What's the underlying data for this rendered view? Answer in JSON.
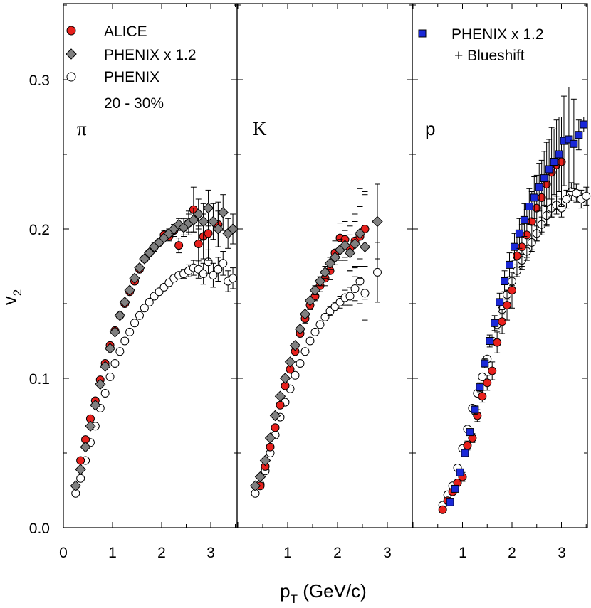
{
  "chart_data": {
    "type": "scatter",
    "ylabel": "v",
    "ylabel_sub": "2",
    "xlabel": "p",
    "xlabel_sub": "T",
    "xlabel_unit": " (GeV/c)",
    "ylim": [
      0.0,
      0.35
    ],
    "yticks": [
      "0.0",
      "0.1",
      "0.2",
      "0.3"
    ],
    "centrality": "20 - 30%",
    "legend": {
      "alice": "ALICE",
      "phenix_scaled": "PHENIX x 1.2",
      "phenix": "PHENIX",
      "phenix_blueshift_1": "PHENIX x 1.2",
      "phenix_blueshift_2": "+ Blueshift"
    },
    "colors": {
      "alice": "#e8201c",
      "phenix_scaled": "#808080",
      "phenix": "#ffffff",
      "phenix_blueshift": "#1a28d8"
    },
    "panels": [
      {
        "particle": "π",
        "xlim": [
          0.0,
          3.5
        ],
        "xticks": [
          "0",
          "1",
          "2",
          "3"
        ],
        "series": [
          {
            "name": "ALICE",
            "marker": "circle-red",
            "x": [
              0.35,
              0.45,
              0.55,
              0.65,
              0.75,
              0.85,
              0.95,
              1.05,
              1.15,
              1.25,
              1.35,
              1.45,
              1.55,
              1.65,
              1.75,
              1.85,
              1.95,
              2.05,
              2.15,
              2.25,
              2.35,
              2.45,
              2.55,
              2.65,
              2.75,
              2.85,
              2.95,
              3.15
            ],
            "y": [
              0.045,
              0.059,
              0.073,
              0.085,
              0.099,
              0.11,
              0.122,
              0.132,
              0.142,
              0.15,
              0.158,
              0.165,
              0.173,
              0.18,
              0.184,
              0.188,
              0.191,
              0.196,
              0.195,
              0.199,
              0.189,
              0.201,
              0.204,
              0.213,
              0.19,
              0.195,
              0.197,
              0.203
            ],
            "err": [
              0.002,
              0.002,
              0.002,
              0.002,
              0.002,
              0.002,
              0.002,
              0.002,
              0.002,
              0.002,
              0.002,
              0.002,
              0.002,
              0.002,
              0.002,
              0.003,
              0.003,
              0.003,
              0.003,
              0.004,
              0.005,
              0.006,
              0.008,
              0.015,
              0.012,
              0.015,
              0.018,
              0.015
            ]
          },
          {
            "name": "PHENIX x 1.2",
            "marker": "diamond-gray",
            "x": [
              0.25,
              0.35,
              0.45,
              0.55,
              0.65,
              0.75,
              0.85,
              0.95,
              1.05,
              1.15,
              1.25,
              1.35,
              1.45,
              1.55,
              1.65,
              1.75,
              1.85,
              1.95,
              2.05,
              2.15,
              2.25,
              2.35,
              2.45,
              2.55,
              2.65,
              2.75,
              2.85,
              2.95,
              3.05,
              3.15,
              3.25,
              3.35,
              3.45
            ],
            "y": [
              0.028,
              0.039,
              0.054,
              0.068,
              0.082,
              0.096,
              0.108,
              0.12,
              0.131,
              0.142,
              0.151,
              0.159,
              0.167,
              0.174,
              0.18,
              0.184,
              0.188,
              0.191,
              0.194,
              0.197,
              0.2,
              0.203,
              0.201,
              0.204,
              0.206,
              0.21,
              0.205,
              0.214,
              0.205,
              0.2,
              0.211,
              0.197,
              0.2
            ],
            "err": [
              0.002,
              0.002,
              0.002,
              0.002,
              0.002,
              0.002,
              0.002,
              0.002,
              0.002,
              0.002,
              0.002,
              0.002,
              0.002,
              0.002,
              0.002,
              0.002,
              0.002,
              0.002,
              0.002,
              0.003,
              0.003,
              0.004,
              0.005,
              0.006,
              0.008,
              0.01,
              0.012,
              0.012,
              0.012,
              0.012,
              0.012,
              0.01,
              0.01
            ]
          },
          {
            "name": "PHENIX",
            "marker": "circle-open",
            "x": [
              0.25,
              0.35,
              0.45,
              0.55,
              0.65,
              0.75,
              0.85,
              0.95,
              1.05,
              1.15,
              1.25,
              1.35,
              1.45,
              1.55,
              1.65,
              1.75,
              1.85,
              1.95,
              2.05,
              2.15,
              2.25,
              2.35,
              2.45,
              2.55,
              2.65,
              2.75,
              2.85,
              2.95,
              3.05,
              3.15,
              3.25,
              3.35,
              3.45
            ],
            "y": [
              0.023,
              0.033,
              0.045,
              0.057,
              0.068,
              0.08,
              0.09,
              0.101,
              0.11,
              0.118,
              0.125,
              0.131,
              0.137,
              0.142,
              0.147,
              0.151,
              0.155,
              0.158,
              0.161,
              0.164,
              0.167,
              0.169,
              0.17,
              0.172,
              0.174,
              0.173,
              0.17,
              0.178,
              0.169,
              0.173,
              0.177,
              0.165,
              0.167
            ],
            "err": [
              0.001,
              0.001,
              0.001,
              0.001,
              0.001,
              0.001,
              0.001,
              0.001,
              0.001,
              0.001,
              0.001,
              0.001,
              0.001,
              0.001,
              0.001,
              0.001,
              0.001,
              0.001,
              0.001,
              0.002,
              0.002,
              0.002,
              0.003,
              0.004,
              0.005,
              0.006,
              0.007,
              0.008,
              0.008,
              0.008,
              0.008,
              0.007,
              0.007
            ]
          }
        ]
      },
      {
        "particle": "K",
        "xlim": [
          0.0,
          3.5
        ],
        "xticks": [
          "1",
          "2",
          "3"
        ],
        "series": [
          {
            "name": "ALICE",
            "marker": "circle-red",
            "x": [
              0.45,
              0.55,
              0.65,
              0.75,
              0.85,
              0.95,
              1.05,
              1.15,
              1.25,
              1.35,
              1.45,
              1.55,
              1.65,
              1.75,
              1.85,
              1.95,
              2.05,
              2.15,
              2.25,
              2.35,
              2.45,
              2.55
            ],
            "y": [
              0.028,
              0.041,
              0.054,
              0.067,
              0.082,
              0.095,
              0.106,
              0.118,
              0.13,
              0.14,
              0.149,
              0.155,
              0.162,
              0.167,
              0.172,
              0.184,
              0.194,
              0.193,
              0.187,
              0.192,
              0.195,
              0.2
            ],
            "err": [
              0.002,
              0.002,
              0.002,
              0.002,
              0.002,
              0.002,
              0.002,
              0.002,
              0.002,
              0.003,
              0.003,
              0.003,
              0.004,
              0.005,
              0.006,
              0.008,
              0.01,
              0.012,
              0.015,
              0.018,
              0.02,
              0.025
            ]
          },
          {
            "name": "PHENIX x 1.2",
            "marker": "diamond-gray",
            "x": [
              0.35,
              0.45,
              0.55,
              0.65,
              0.75,
              0.85,
              0.95,
              1.05,
              1.15,
              1.25,
              1.35,
              1.45,
              1.55,
              1.65,
              1.75,
              1.85,
              1.95,
              2.05,
              2.15,
              2.25,
              2.35,
              2.45,
              2.55,
              2.8
            ],
            "y": [
              0.028,
              0.034,
              0.045,
              0.06,
              0.075,
              0.088,
              0.1,
              0.111,
              0.122,
              0.133,
              0.143,
              0.152,
              0.159,
              0.165,
              0.171,
              0.177,
              0.181,
              0.186,
              0.189,
              0.184,
              0.19,
              0.197,
              0.188,
              0.205
            ],
            "err": [
              0.002,
              0.002,
              0.002,
              0.002,
              0.002,
              0.002,
              0.002,
              0.002,
              0.002,
              0.002,
              0.002,
              0.002,
              0.003,
              0.003,
              0.004,
              0.004,
              0.005,
              0.007,
              0.01,
              0.012,
              0.015,
              0.03,
              0.035,
              0.025
            ]
          },
          {
            "name": "PHENIX",
            "marker": "circle-open",
            "x": [
              0.35,
              0.45,
              0.55,
              0.65,
              0.75,
              0.85,
              0.95,
              1.05,
              1.15,
              1.25,
              1.35,
              1.45,
              1.55,
              1.65,
              1.75,
              1.85,
              1.95,
              2.05,
              2.15,
              2.25,
              2.35,
              2.45,
              2.55,
              2.8
            ],
            "y": [
              0.023,
              0.029,
              0.038,
              0.05,
              0.062,
              0.074,
              0.084,
              0.093,
              0.102,
              0.11,
              0.118,
              0.125,
              0.131,
              0.136,
              0.141,
              0.145,
              0.148,
              0.151,
              0.154,
              0.155,
              0.16,
              0.165,
              0.157,
              0.171
            ],
            "err": [
              0.001,
              0.001,
              0.001,
              0.001,
              0.001,
              0.001,
              0.001,
              0.001,
              0.001,
              0.001,
              0.001,
              0.001,
              0.002,
              0.002,
              0.002,
              0.003,
              0.003,
              0.004,
              0.005,
              0.006,
              0.008,
              0.015,
              0.018,
              0.02
            ]
          }
        ]
      },
      {
        "particle": "p",
        "xlim": [
          0.0,
          3.5
        ],
        "xticks": [
          "1",
          "2",
          "3"
        ],
        "series": [
          {
            "name": "ALICE",
            "marker": "circle-red",
            "x": [
              0.6,
              0.7,
              0.8,
              0.9,
              1.0,
              1.1,
              1.2,
              1.3,
              1.4,
              1.5,
              1.6,
              1.7,
              1.8,
              1.9,
              2.0,
              2.1,
              2.2,
              2.3,
              2.4,
              2.5,
              2.6,
              2.7,
              2.8,
              2.9,
              3.0
            ],
            "y": [
              0.012,
              0.018,
              0.024,
              0.03,
              0.034,
              0.055,
              0.06,
              0.075,
              0.088,
              0.097,
              0.105,
              0.124,
              0.138,
              0.149,
              0.159,
              0.182,
              0.188,
              0.196,
              0.205,
              0.214,
              0.221,
              0.23,
              0.238,
              0.243,
              0.245
            ],
            "err": [
              0.002,
              0.002,
              0.002,
              0.002,
              0.003,
              0.003,
              0.003,
              0.004,
              0.004,
              0.005,
              0.006,
              0.007,
              0.008,
              0.01,
              0.012,
              0.014,
              0.015,
              0.017,
              0.02,
              0.022,
              0.025,
              0.028,
              0.03,
              0.03,
              0.03
            ]
          },
          {
            "name": "PHENIX x 1.2 + Blueshift",
            "marker": "square-blue",
            "x": [
              0.75,
              0.85,
              0.95,
              1.05,
              1.15,
              1.25,
              1.35,
              1.45,
              1.55,
              1.65,
              1.75,
              1.85,
              1.95,
              2.05,
              2.15,
              2.25,
              2.35,
              2.45,
              2.55,
              2.65,
              2.75,
              2.85,
              2.95,
              3.05,
              3.15,
              3.25,
              3.35,
              3.45
            ],
            "y": [
              0.017,
              0.026,
              0.037,
              0.05,
              0.064,
              0.079,
              0.094,
              0.11,
              0.125,
              0.137,
              0.151,
              0.165,
              0.176,
              0.188,
              0.197,
              0.206,
              0.215,
              0.221,
              0.228,
              0.234,
              0.24,
              0.245,
              0.25,
              0.259,
              0.26,
              0.257,
              0.263,
              0.27
            ],
            "err": [
              0.002,
              0.002,
              0.002,
              0.002,
              0.002,
              0.003,
              0.003,
              0.003,
              0.004,
              0.005,
              0.006,
              0.007,
              0.008,
              0.009,
              0.01,
              0.011,
              0.012,
              0.014,
              0.016,
              0.018,
              0.02,
              0.022,
              0.025,
              0.03,
              0.035,
              0.03,
              0.01,
              0.005
            ]
          },
          {
            "name": "PHENIX",
            "marker": "circle-open",
            "x": [
              0.6,
              0.7,
              0.8,
              0.9,
              1.0,
              1.1,
              1.2,
              1.3,
              1.4,
              1.5,
              1.6,
              1.7,
              1.8,
              1.9,
              2.0,
              2.1,
              2.2,
              2.3,
              2.4,
              2.5,
              2.6,
              2.7,
              2.8,
              2.9,
              3.0,
              3.1,
              3.2,
              3.3,
              3.4,
              3.5
            ],
            "y": [
              0.015,
              0.022,
              0.028,
              0.04,
              0.053,
              0.066,
              0.08,
              0.09,
              0.101,
              0.113,
              0.125,
              0.136,
              0.146,
              0.156,
              0.165,
              0.172,
              0.179,
              0.185,
              0.191,
              0.197,
              0.203,
              0.209,
              0.214,
              0.216,
              0.214,
              0.22,
              0.225,
              0.224,
              0.22,
              0.222
            ],
            "err": [
              0.001,
              0.001,
              0.001,
              0.001,
              0.001,
              0.001,
              0.002,
              0.002,
              0.002,
              0.002,
              0.002,
              0.003,
              0.003,
              0.003,
              0.003,
              0.004,
              0.004,
              0.004,
              0.005,
              0.005,
              0.005,
              0.006,
              0.006,
              0.006,
              0.006,
              0.006,
              0.006,
              0.006,
              0.006,
              0.006
            ]
          }
        ]
      }
    ]
  }
}
